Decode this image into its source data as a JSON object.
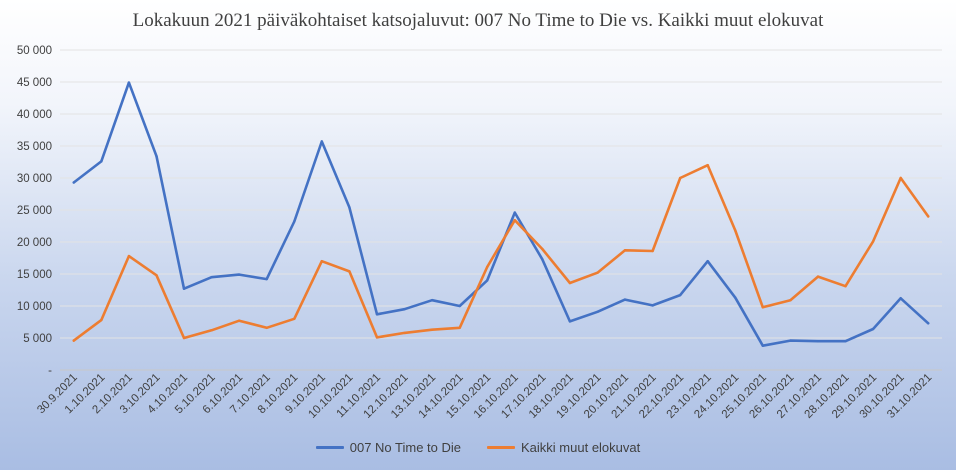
{
  "chart_data": {
    "type": "line",
    "title": "Lokakuun 2021 päiväkohtaiset katsojaluvut: 007 No Time to Die vs. Kaikki muut elokuvat",
    "xlabel": "",
    "ylabel": "",
    "ylim": [
      0,
      50000
    ],
    "yticks": [
      0,
      5000,
      10000,
      15000,
      20000,
      25000,
      30000,
      35000,
      40000,
      45000,
      50000
    ],
    "ytick_labels": [
      "-",
      "5 000",
      "10 000",
      "15 000",
      "20 000",
      "25 000",
      "30 000",
      "35 000",
      "40 000",
      "45 000",
      "50 000"
    ],
    "grid": true,
    "legend_position": "bottom",
    "categories": [
      "30.9.2021",
      "1.10.2021",
      "2.10.2021",
      "3.10.2021",
      "4.10.2021",
      "5.10.2021",
      "6.10.2021",
      "7.10.2021",
      "8.10.2021",
      "9.10.2021",
      "10.10.2021",
      "11.10.2021",
      "12.10.2021",
      "13.10.2021",
      "14.10.2021",
      "15.10.2021",
      "16.10.2021",
      "17.10.2021",
      "18.10.2021",
      "19.10.2021",
      "20.10.2021",
      "21.10.2021",
      "22.10.2021",
      "23.10.2021",
      "24.10.2021",
      "25.10.2021",
      "26.10.2021",
      "27.10.2021",
      "28.10.2021",
      "29.10.2021",
      "30.10.2021",
      "31.10.2021"
    ],
    "series": [
      {
        "name": "007 No Time to Die",
        "color": "#4472c4",
        "values": [
          29300,
          32600,
          44900,
          33400,
          12700,
          14500,
          14900,
          14200,
          23200,
          35700,
          25400,
          8700,
          9500,
          10900,
          10000,
          14000,
          24600,
          17300,
          7600,
          9100,
          11000,
          10100,
          11700,
          17000,
          11300,
          3800,
          4600,
          4500,
          4500,
          6400,
          11200,
          7300
        ]
      },
      {
        "name": "Kaikki muut elokuvat",
        "color": "#ed7d31",
        "values": [
          4600,
          7800,
          17800,
          14800,
          5000,
          6200,
          7700,
          6600,
          8000,
          17000,
          15400,
          5100,
          5800,
          6300,
          6600,
          16100,
          23400,
          18900,
          13600,
          15200,
          18700,
          18600,
          30000,
          32000,
          21800,
          9800,
          10900,
          14600,
          13100,
          20100,
          30000,
          24000
        ]
      }
    ]
  }
}
